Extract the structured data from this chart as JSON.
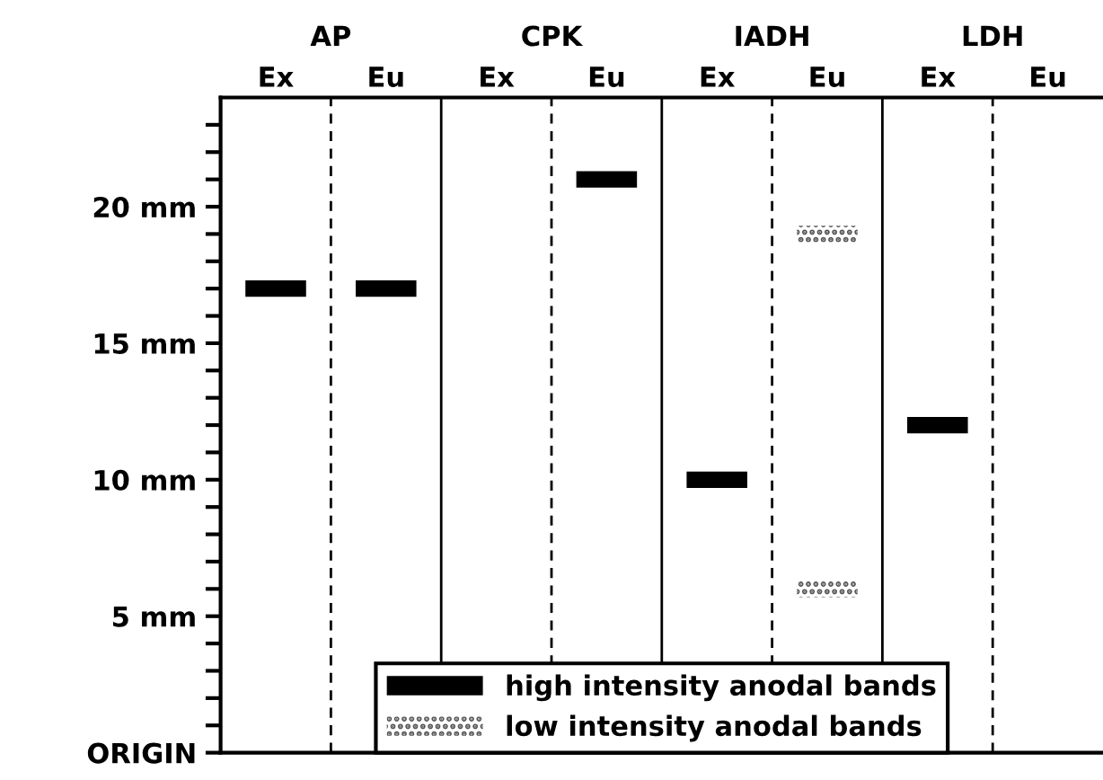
{
  "chart_data": {
    "type": "bar",
    "categories": [
      "Ex",
      "Eu",
      "Ex",
      "Eu",
      "Ex",
      "Eu",
      "Ex",
      "Eu"
    ],
    "annotations": [
      "AP",
      "CPK",
      "IADH",
      "LDH"
    ],
    "series": [
      {
        "name": "high intensity anodal bands",
        "color": "#000000",
        "values": [
          0.6,
          0.6,
          null,
          0.6,
          0.6,
          null,
          0.6,
          null
        ],
        "base": [
          16.7,
          16.7,
          null,
          20.7,
          9.7,
          null,
          11.7,
          null
        ]
      },
      {
        "name": "low intensity anodal bands",
        "color": "#555555",
        "values": [
          null,
          null,
          null,
          null,
          null,
          0.6,
          null,
          null
        ],
        "base": [
          null,
          null,
          null,
          null,
          null,
          18.7,
          null,
          null
        ]
      },
      {
        "color": "#555555",
        "values": [
          null,
          null,
          null,
          null,
          null,
          0.6,
          null,
          null
        ],
        "base": [
          null,
          null,
          null,
          null,
          null,
          5.7,
          null,
          null
        ]
      }
    ],
    "ylim": [
      0,
      24
    ],
    "yticks": [
      {
        "value": 0,
        "label": "ORIGIN"
      },
      {
        "value": 1,
        "label": null
      },
      {
        "value": 2,
        "label": null
      },
      {
        "value": 3,
        "label": null
      },
      {
        "value": 4,
        "label": null
      },
      {
        "value": 5,
        "label": "5 mm"
      },
      {
        "value": 6,
        "label": null
      },
      {
        "value": 7,
        "label": null
      },
      {
        "value": 8,
        "label": null
      },
      {
        "value": 9,
        "label": null
      },
      {
        "value": 10,
        "label": "10 mm"
      },
      {
        "value": 11,
        "label": null
      },
      {
        "value": 12,
        "label": null
      },
      {
        "value": 13,
        "label": null
      },
      {
        "value": 14,
        "label": null
      },
      {
        "value": 15,
        "label": "15 mm"
      },
      {
        "value": 16,
        "label": null
      },
      {
        "value": 17,
        "label": null
      },
      {
        "value": 18,
        "label": null
      },
      {
        "value": 19,
        "label": null
      },
      {
        "value": 20,
        "label": "20 mm"
      },
      {
        "value": 21,
        "label": null
      },
      {
        "value": 22,
        "label": null
      },
      {
        "value": 23,
        "label": null
      }
    ],
    "grid": false,
    "legend": "bottom"
  }
}
